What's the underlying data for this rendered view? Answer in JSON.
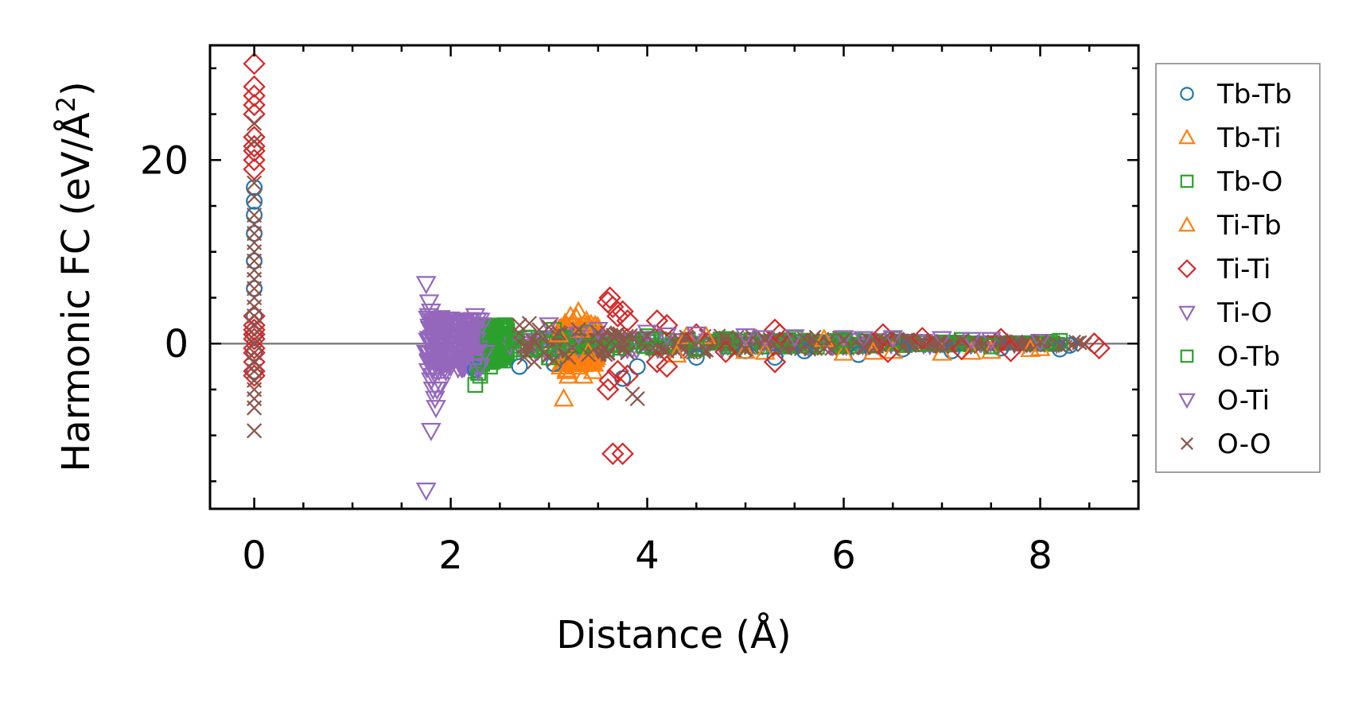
{
  "chart_data": {
    "type": "scatter",
    "xlabel": "Distance (Å)",
    "ylabel": "Harmonic FC (eV/Å",
    "ylabel_superscript": "2",
    "ylabel_close": ")",
    "xlim": [
      -0.45,
      9.0
    ],
    "ylim": [
      -18,
      32.5
    ],
    "xticks": [
      0,
      2,
      4,
      6,
      8
    ],
    "xtick_labels": [
      "0",
      "2",
      "4",
      "6",
      "8"
    ],
    "yticks": [
      0,
      20
    ],
    "ytick_labels": [
      "0",
      "20"
    ],
    "x_minor_step": 0.5,
    "y_minor_step": 5,
    "zero_line": true,
    "legend_placement": "outside right",
    "series": [
      {
        "name": "Tb-Tb",
        "marker": "circle",
        "color": "#1f77b4",
        "points": [
          [
            0,
            17
          ],
          [
            0,
            15.5
          ],
          [
            0,
            14
          ],
          [
            0,
            12
          ],
          [
            0,
            9
          ],
          [
            0,
            6
          ],
          [
            0,
            3
          ],
          [
            0,
            1
          ],
          [
            0,
            -1
          ],
          [
            0,
            -3
          ],
          [
            2.25,
            -2.8
          ],
          [
            2.7,
            -2.5
          ],
          [
            3.05,
            -2.2
          ],
          [
            3.75,
            -3.8
          ],
          [
            3.9,
            -2.5
          ],
          [
            4.5,
            -1.5
          ],
          [
            5.0,
            -0.8
          ],
          [
            5.3,
            -1.5
          ],
          [
            5.6,
            -0.8
          ],
          [
            6.15,
            -1.2
          ],
          [
            6.6,
            -0.6
          ],
          [
            7.1,
            -0.8
          ],
          [
            7.6,
            -0.5
          ],
          [
            8.2,
            -0.6
          ],
          [
            8.3,
            -0.2
          ]
        ]
      },
      {
        "name": "Tb-Ti",
        "marker": "triangle-up",
        "color": "#ff7f0e",
        "points": [
          [
            3.15,
            -6
          ],
          [
            3.2,
            -3.5
          ],
          [
            3.25,
            -2
          ],
          [
            3.3,
            3.5
          ],
          [
            3.35,
            2
          ],
          [
            3.4,
            -1
          ],
          [
            3.1,
            1
          ],
          [
            3.18,
            -2.8
          ],
          [
            3.28,
            2.8
          ],
          [
            3.45,
            -3
          ],
          [
            3.35,
            -3.5
          ],
          [
            3.22,
            3
          ],
          [
            4.3,
            -1.2
          ],
          [
            5.0,
            -0.8
          ],
          [
            6.0,
            -1.0
          ],
          [
            6.5,
            -0.8
          ],
          [
            7.0,
            -1.0
          ],
          [
            7.5,
            -0.8
          ],
          [
            8.0,
            -0.5
          ],
          [
            4.6,
            0.8
          ],
          [
            5.8,
            0.5
          ]
        ]
      },
      {
        "name": "Tb-O",
        "marker": "square",
        "color": "#2ca02c",
        "points": [
          [
            2.25,
            -4.5
          ],
          [
            2.28,
            -3.2
          ],
          [
            2.32,
            -2.2
          ],
          [
            2.45,
            1.5
          ],
          [
            2.5,
            -1.8
          ],
          [
            2.55,
            2
          ],
          [
            2.5,
            1
          ],
          [
            2.48,
            -1
          ],
          [
            2.42,
            -2
          ],
          [
            2.38,
            0.8
          ],
          [
            2.52,
            0.2
          ],
          [
            3.05,
            1.5
          ],
          [
            3.1,
            -1.2
          ],
          [
            3.4,
            1.2
          ],
          [
            4.0,
            0.8
          ],
          [
            4.8,
            0.5
          ],
          [
            5.5,
            0.6
          ],
          [
            6.5,
            0.5
          ],
          [
            7.2,
            0.4
          ],
          [
            8.1,
            0.2
          ],
          [
            8.2,
            0.3
          ]
        ]
      },
      {
        "name": "Ti-Tb",
        "marker": "triangle-up",
        "color": "#ff7f0e",
        "points": [
          [
            3.18,
            -3
          ],
          [
            3.28,
            -2.5
          ],
          [
            3.38,
            2.5
          ],
          [
            3.42,
            -2
          ],
          [
            3.12,
            -2.5
          ],
          [
            3.32,
            1.5
          ],
          [
            4.4,
            0.8
          ],
          [
            5.2,
            -0.9
          ],
          [
            6.3,
            -0.9
          ],
          [
            7.3,
            -0.9
          ],
          [
            7.9,
            -0.6
          ]
        ]
      },
      {
        "name": "Ti-Ti",
        "marker": "diamond",
        "color": "#d62728",
        "points": [
          [
            0,
            30.5
          ],
          [
            0,
            28
          ],
          [
            0,
            27
          ],
          [
            0,
            26
          ],
          [
            0,
            25
          ],
          [
            0,
            22.5
          ],
          [
            0,
            21.5
          ],
          [
            0,
            21
          ],
          [
            0,
            20
          ],
          [
            0,
            19
          ],
          [
            0,
            3
          ],
          [
            0,
            2
          ],
          [
            0,
            1.5
          ],
          [
            0,
            1
          ],
          [
            0,
            0.5
          ],
          [
            0,
            -0.5
          ],
          [
            0,
            -1
          ],
          [
            0,
            -2
          ],
          [
            0,
            -3
          ],
          [
            0,
            -3.5
          ],
          [
            3.6,
            4.5
          ],
          [
            3.62,
            5
          ],
          [
            3.65,
            4
          ],
          [
            3.7,
            3
          ],
          [
            3.75,
            3.5
          ],
          [
            3.8,
            2.5
          ],
          [
            3.62,
            -4
          ],
          [
            3.7,
            -3
          ],
          [
            3.8,
            -3.5
          ],
          [
            3.6,
            -5
          ],
          [
            3.65,
            -12
          ],
          [
            3.75,
            -12
          ],
          [
            4.1,
            2.5
          ],
          [
            4.2,
            2
          ],
          [
            4.1,
            -2
          ],
          [
            4.2,
            -2.5
          ],
          [
            4.5,
            1
          ],
          [
            4.8,
            -0.9
          ],
          [
            5.3,
            1.5
          ],
          [
            5.3,
            -2
          ],
          [
            5.35,
            1
          ],
          [
            6.4,
            1
          ],
          [
            6.45,
            -0.9
          ],
          [
            6.8,
            0.6
          ],
          [
            7.2,
            -0.6
          ],
          [
            7.6,
            0.5
          ],
          [
            7.7,
            -0.8
          ],
          [
            8.55,
            0
          ],
          [
            8.6,
            -0.5
          ]
        ]
      },
      {
        "name": "Ti-O",
        "marker": "triangle-down",
        "color": "#9467bd",
        "points": [
          [
            1.75,
            6.5
          ],
          [
            1.78,
            4.5
          ],
          [
            1.8,
            3.5
          ],
          [
            1.82,
            2.5
          ],
          [
            1.85,
            2
          ],
          [
            1.9,
            1.5
          ],
          [
            1.95,
            1
          ],
          [
            2.0,
            0.5
          ],
          [
            1.75,
            -1
          ],
          [
            1.78,
            -2
          ],
          [
            1.8,
            -4
          ],
          [
            1.82,
            -5
          ],
          [
            1.84,
            -6
          ],
          [
            1.8,
            -9.5
          ],
          [
            1.75,
            -16
          ],
          [
            1.88,
            -3
          ],
          [
            1.92,
            -2
          ],
          [
            1.85,
            -7
          ],
          [
            1.9,
            -4.5
          ],
          [
            1.95,
            -3
          ],
          [
            2.0,
            -2.5
          ],
          [
            2.05,
            1
          ],
          [
            2.1,
            0.5
          ],
          [
            2.15,
            -1.5
          ],
          [
            2.25,
            3
          ],
          [
            2.3,
            2.5
          ],
          [
            2.35,
            -1
          ],
          [
            2.28,
            -3
          ],
          [
            3.0,
            2
          ],
          [
            3.5,
            1.5
          ],
          [
            4.0,
            1.2
          ],
          [
            4.5,
            1
          ],
          [
            5.0,
            0.8
          ],
          [
            5.5,
            0.7
          ],
          [
            6.0,
            0.6
          ],
          [
            6.5,
            0.6
          ],
          [
            7.0,
            0.5
          ],
          [
            7.5,
            0.4
          ],
          [
            8.0,
            0.2
          ]
        ]
      },
      {
        "name": "O-Tb",
        "marker": "square",
        "color": "#2ca02c",
        "points": [
          [
            2.3,
            -3.5
          ],
          [
            2.4,
            -2.5
          ],
          [
            2.5,
            -1.5
          ],
          [
            2.55,
            1.8
          ],
          [
            2.6,
            -1
          ],
          [
            3.0,
            -1.5
          ],
          [
            4.5,
            -0.6
          ],
          [
            6.0,
            0.4
          ],
          [
            7.5,
            -0.3
          ]
        ]
      },
      {
        "name": "O-Ti",
        "marker": "triangle-down",
        "color": "#9467bd",
        "points": [
          [
            1.78,
            3
          ],
          [
            1.82,
            -3.5
          ],
          [
            1.86,
            -5
          ],
          [
            1.9,
            2.5
          ],
          [
            2.0,
            -1.5
          ],
          [
            2.3,
            -2.5
          ],
          [
            2.32,
            2
          ],
          [
            3.3,
            1
          ],
          [
            4.2,
            0.9
          ],
          [
            5.2,
            0.6
          ],
          [
            6.2,
            0.5
          ],
          [
            7.3,
            0.4
          ]
        ]
      },
      {
        "name": "O-O",
        "marker": "x",
        "color": "#8c564b",
        "points": [
          [
            0,
            24
          ],
          [
            0,
            22
          ],
          [
            0,
            17.5
          ],
          [
            0,
            16
          ],
          [
            0,
            14
          ],
          [
            0,
            13
          ],
          [
            0,
            12
          ],
          [
            0,
            11
          ],
          [
            0,
            10
          ],
          [
            0,
            9
          ],
          [
            0,
            8
          ],
          [
            0,
            7
          ],
          [
            0,
            6
          ],
          [
            0,
            5
          ],
          [
            0,
            4
          ],
          [
            0,
            3
          ],
          [
            0,
            2
          ],
          [
            0,
            1
          ],
          [
            0,
            0
          ],
          [
            0,
            -1
          ],
          [
            0,
            -2
          ],
          [
            0,
            -3
          ],
          [
            0,
            -4
          ],
          [
            0,
            -5
          ],
          [
            0,
            -6
          ],
          [
            0,
            -7
          ],
          [
            0,
            -9.5
          ],
          [
            2.7,
            2
          ],
          [
            2.75,
            -1.5
          ],
          [
            2.8,
            2.2
          ],
          [
            2.85,
            -2
          ],
          [
            2.9,
            1.5
          ],
          [
            2.95,
            -1
          ],
          [
            3.0,
            1.8
          ],
          [
            3.05,
            -1.8
          ],
          [
            3.1,
            1.2
          ],
          [
            3.2,
            -1.5
          ],
          [
            3.3,
            1.5
          ],
          [
            3.4,
            -1.2
          ],
          [
            3.5,
            1.2
          ],
          [
            3.6,
            -1
          ],
          [
            3.7,
            1
          ],
          [
            3.8,
            -1
          ],
          [
            3.9,
            -6
          ],
          [
            3.85,
            -5.5
          ],
          [
            4.0,
            0.8
          ],
          [
            4.2,
            -0.8
          ],
          [
            4.4,
            0.7
          ],
          [
            4.6,
            -0.7
          ],
          [
            4.8,
            0.6
          ],
          [
            5.0,
            -0.6
          ],
          [
            5.2,
            0.5
          ],
          [
            5.4,
            -0.5
          ],
          [
            5.6,
            0.5
          ],
          [
            5.8,
            -0.5
          ],
          [
            6.0,
            0.4
          ],
          [
            6.2,
            -0.4
          ],
          [
            6.4,
            0.4
          ],
          [
            6.6,
            -0.4
          ],
          [
            6.8,
            0.3
          ],
          [
            7.0,
            -0.3
          ],
          [
            7.2,
            0.3
          ],
          [
            7.4,
            -0.3
          ],
          [
            7.6,
            0.3
          ],
          [
            7.8,
            -0.2
          ],
          [
            8.0,
            0.2
          ],
          [
            8.2,
            -0.2
          ],
          [
            8.4,
            0.1
          ],
          [
            8.45,
            -0.1
          ]
        ]
      }
    ]
  }
}
